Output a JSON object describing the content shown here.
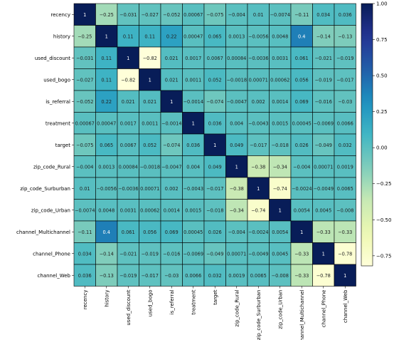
{
  "chart_data": {
    "type": "heatmap",
    "title": "",
    "xlabel": "",
    "ylabel": "",
    "rows": [
      "recency",
      "history",
      "used_discount",
      "used_bogo",
      "is_referral",
      "treatment",
      "target",
      "zip_code_Rural",
      "zip_code_Surburban",
      "zip_code_Urban",
      "channel_Multichannel",
      "channel_Phone",
      "channel_Web"
    ],
    "cols": [
      "recency",
      "history",
      "used_discount",
      "used_bogo",
      "is_referral",
      "treatment",
      "target",
      "zip_code_Rural",
      "zip_code_Surburban",
      "zip_code_Urban",
      "channel_Multichannel",
      "channel_Phone",
      "channel_Web"
    ],
    "values": [
      [
        1,
        -0.25,
        -0.031,
        -0.027,
        -0.052,
        0.00067,
        -0.075,
        -0.004,
        0.01,
        -0.0074,
        -0.11,
        0.034,
        0.036
      ],
      [
        -0.25,
        1,
        0.11,
        0.11,
        0.22,
        0.00047,
        0.065,
        0.0013,
        -0.0056,
        0.0048,
        0.4,
        -0.14,
        -0.13
      ],
      [
        -0.031,
        0.11,
        1,
        -0.82,
        0.021,
        0.0017,
        0.0067,
        0.00084,
        -0.0036,
        0.0031,
        0.061,
        -0.021,
        -0.019
      ],
      [
        -0.027,
        0.11,
        -0.82,
        1,
        0.021,
        0.0011,
        0.052,
        -0.0018,
        0.00071,
        0.00062,
        0.056,
        -0.019,
        -0.017
      ],
      [
        -0.052,
        0.22,
        0.021,
        0.021,
        1,
        -0.0014,
        -0.074,
        -0.0047,
        0.002,
        0.0014,
        0.069,
        -0.016,
        -0.03
      ],
      [
        0.00067,
        0.00047,
        0.0017,
        0.0011,
        -0.0014,
        1,
        0.036,
        0.004,
        -0.0043,
        0.0015,
        0.00045,
        -0.0069,
        0.0066
      ],
      [
        -0.075,
        0.065,
        0.0067,
        0.052,
        -0.074,
        0.036,
        1,
        0.049,
        -0.017,
        -0.018,
        0.026,
        -0.049,
        0.032
      ],
      [
        -0.004,
        0.0013,
        0.00084,
        -0.0018,
        -0.0047,
        0.004,
        0.049,
        1,
        -0.38,
        -0.34,
        -0.004,
        0.00071,
        0.0019
      ],
      [
        0.01,
        -0.0056,
        -0.0036,
        0.00071,
        0.002,
        -0.0043,
        -0.017,
        -0.38,
        1,
        -0.74,
        -0.0024,
        -0.0049,
        0.0065
      ],
      [
        -0.0074,
        0.0048,
        0.0031,
        0.00062,
        0.0014,
        0.0015,
        -0.018,
        -0.34,
        -0.74,
        1,
        0.0054,
        0.0045,
        -0.008
      ],
      [
        -0.11,
        0.4,
        0.061,
        0.056,
        0.069,
        0.00045,
        0.026,
        -0.004,
        -0.0024,
        0.0054,
        1,
        -0.33,
        -0.33
      ],
      [
        0.034,
        -0.14,
        -0.021,
        -0.019,
        -0.016,
        -0.0069,
        -0.049,
        0.00071,
        -0.0049,
        0.0045,
        -0.33,
        1,
        -0.78
      ],
      [
        0.036,
        -0.13,
        -0.019,
        -0.017,
        -0.03,
        0.0066,
        0.032,
        0.0019,
        0.0065,
        -0.008,
        -0.33,
        -0.78,
        1
      ]
    ],
    "value_range": [
      -0.82,
      1
    ],
    "colormap": "YlGnBu",
    "colorbar": {
      "ticks": [
        1.0,
        0.75,
        0.5,
        0.25,
        0.0,
        -0.25,
        -0.5,
        -0.75
      ],
      "tick_labels": [
        "1.00",
        "0.75",
        "0.50",
        "0.25",
        "0.00",
        "−0.25",
        "−0.50",
        "−0.75"
      ]
    },
    "grid": true,
    "cell_border_color": "#000000"
  }
}
